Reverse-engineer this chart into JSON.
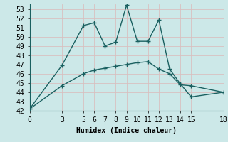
{
  "title": "",
  "xlabel": "Humidex (Indice chaleur)",
  "background_color": "#cce8e8",
  "line_color": "#1a6060",
  "grid_color": "#b0d0d0",
  "xlim": [
    0,
    18
  ],
  "ylim": [
    42,
    53.5
  ],
  "yticks": [
    42,
    43,
    44,
    45,
    46,
    47,
    48,
    49,
    50,
    51,
    52,
    53
  ],
  "xticks": [
    0,
    3,
    5,
    6,
    7,
    8,
    9,
    10,
    11,
    12,
    13,
    14,
    15,
    18
  ],
  "curve1_x": [
    0,
    3,
    5,
    6,
    7,
    8,
    9,
    10,
    11,
    12,
    13,
    14,
    15,
    18
  ],
  "curve1_y": [
    42.2,
    46.9,
    51.2,
    51.5,
    49.0,
    49.4,
    53.4,
    49.5,
    49.5,
    51.8,
    46.5,
    44.9,
    43.5,
    44.0
  ],
  "curve2_x": [
    0,
    3,
    5,
    6,
    7,
    8,
    9,
    10,
    11,
    12,
    13,
    14,
    15,
    18
  ],
  "curve2_y": [
    42.2,
    44.7,
    46.0,
    46.4,
    46.6,
    46.8,
    47.0,
    47.2,
    47.3,
    46.5,
    46.0,
    44.8,
    44.7,
    44.0
  ],
  "marker": "+",
  "marker_size": 5,
  "line_width": 1.0,
  "font_size": 7,
  "label_font_size": 7
}
